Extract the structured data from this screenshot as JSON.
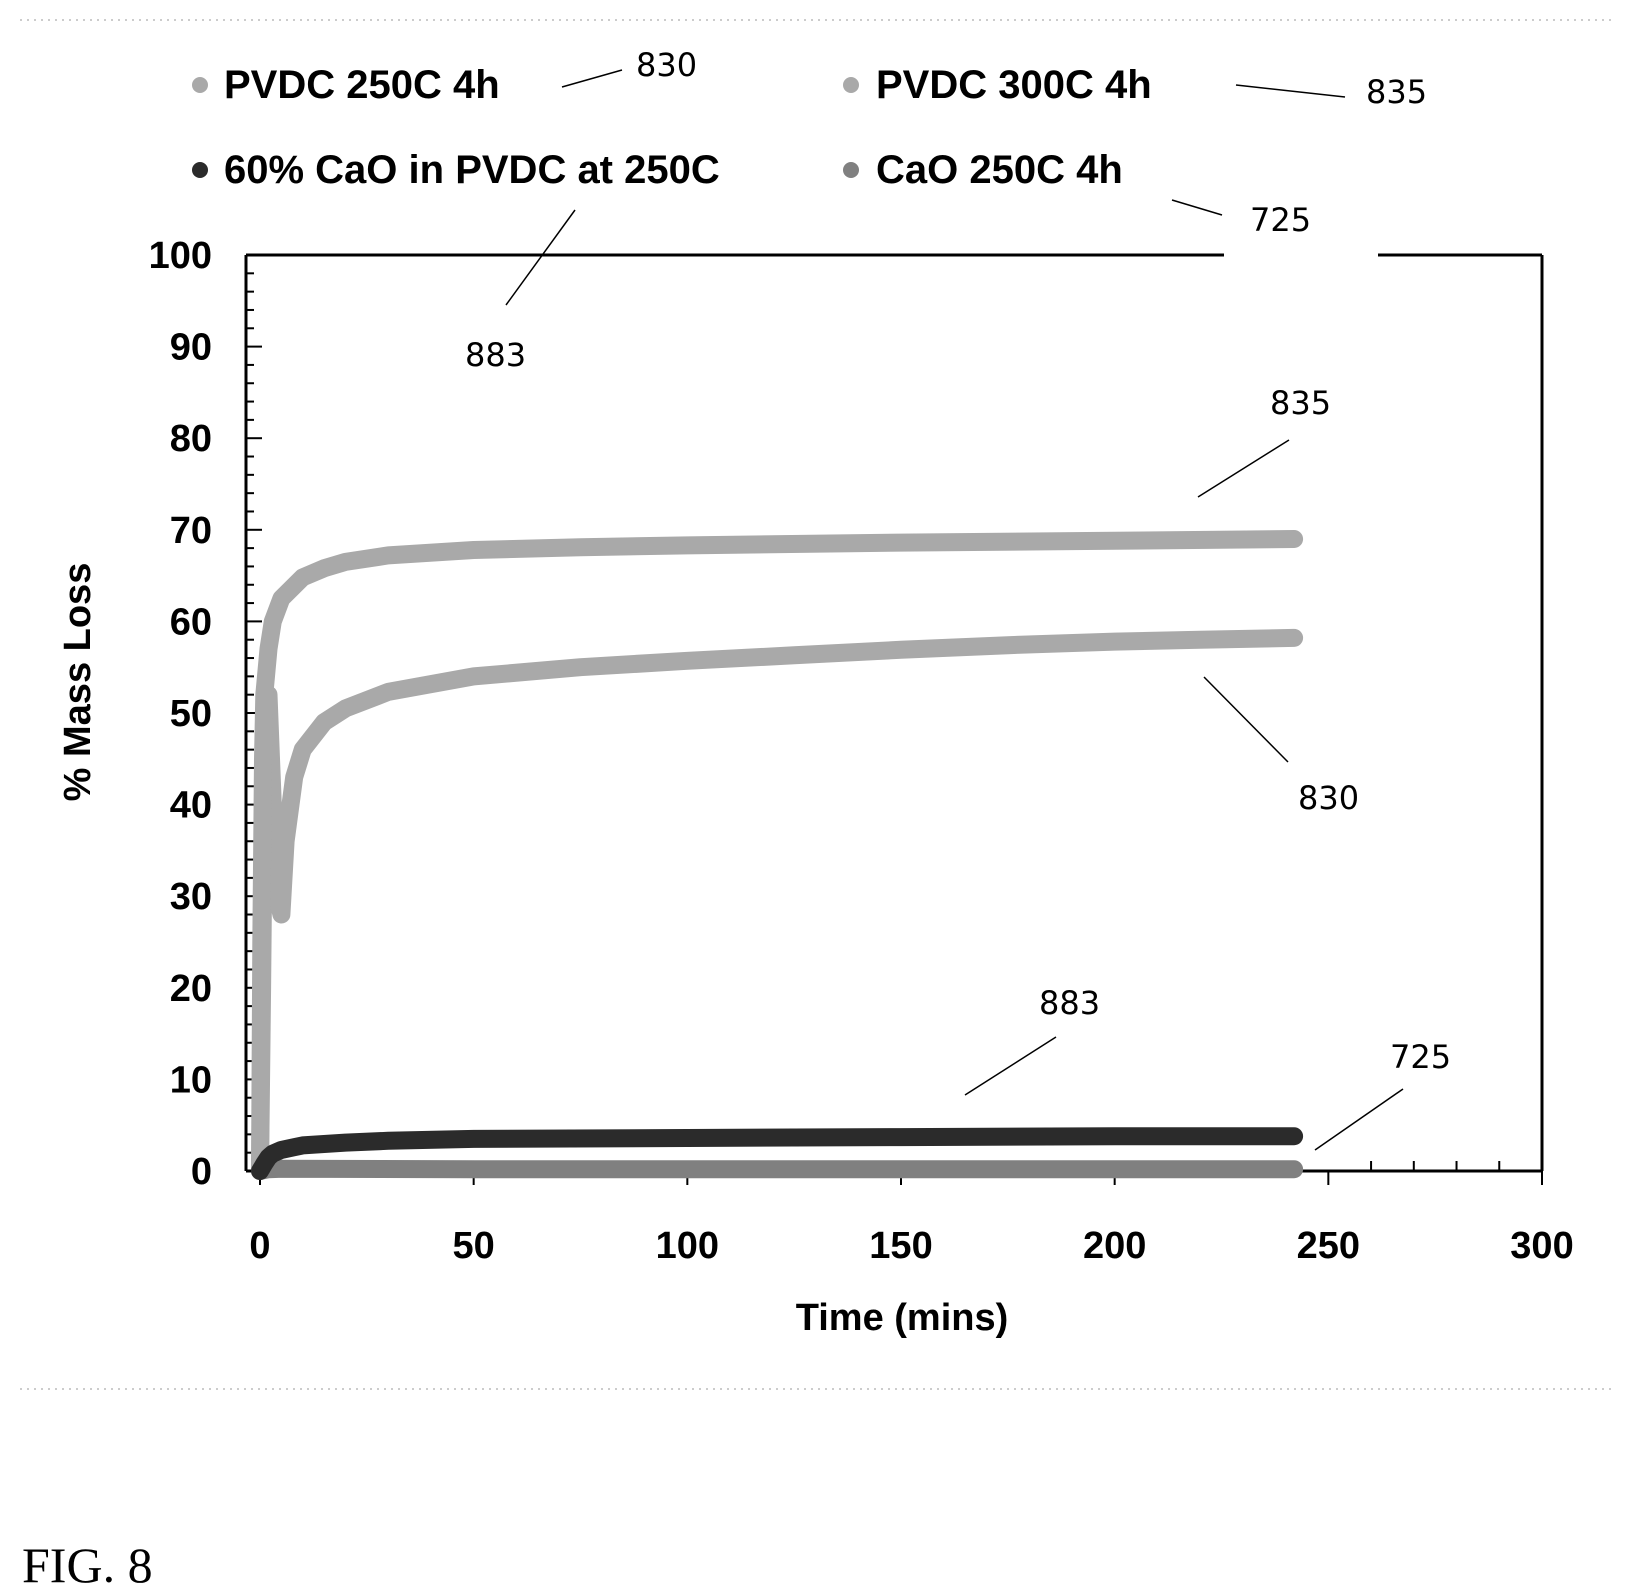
{
  "chart_data": {
    "type": "line",
    "xlabel": "Time (mins)",
    "ylabel": "% Mass Loss",
    "xlim": [
      0,
      300
    ],
    "ylim": [
      0,
      100
    ],
    "x_ticks": [
      "0",
      "50",
      "100",
      "150",
      "200",
      "250",
      "300"
    ],
    "y_ticks": [
      "0",
      "10",
      "20",
      "30",
      "40",
      "50",
      "60",
      "70",
      "80",
      "90",
      "100"
    ],
    "grid": false,
    "legend_position": "top",
    "series": [
      {
        "name": "PVDC 250C 4h",
        "ref": "830",
        "color": "#a9a9a9",
        "points": [
          [
            0,
            0
          ],
          [
            0.5,
            20
          ],
          [
            1,
            45
          ],
          [
            2,
            52
          ],
          [
            3,
            40
          ],
          [
            4,
            30
          ],
          [
            5,
            28
          ],
          [
            6,
            36
          ],
          [
            8,
            43
          ],
          [
            10,
            46
          ],
          [
            15,
            49
          ],
          [
            20,
            50.5
          ],
          [
            30,
            52.3
          ],
          [
            50,
            54
          ],
          [
            75,
            55
          ],
          [
            100,
            55.7
          ],
          [
            125,
            56.3
          ],
          [
            150,
            56.9
          ],
          [
            175,
            57.4
          ],
          [
            200,
            57.8
          ],
          [
            220,
            58
          ],
          [
            242,
            58.2
          ]
        ]
      },
      {
        "name": "PVDC 300C 4h",
        "ref": "835",
        "color": "#a9a9a9",
        "points": [
          [
            0,
            0
          ],
          [
            0.3,
            25
          ],
          [
            0.7,
            45
          ],
          [
            1,
            52
          ],
          [
            2,
            57
          ],
          [
            3,
            60
          ],
          [
            5,
            62.5
          ],
          [
            10,
            64.8
          ],
          [
            15,
            65.8
          ],
          [
            20,
            66.5
          ],
          [
            30,
            67.2
          ],
          [
            50,
            67.8
          ],
          [
            75,
            68.1
          ],
          [
            100,
            68.3
          ],
          [
            150,
            68.6
          ],
          [
            200,
            68.8
          ],
          [
            242,
            69
          ]
        ]
      },
      {
        "name": "60% CaO in PVDC at 250C",
        "ref": "883",
        "color": "#2b2b2b",
        "points": [
          [
            0,
            0
          ],
          [
            1,
            0.8
          ],
          [
            2,
            1.5
          ],
          [
            3,
            1.9
          ],
          [
            5,
            2.3
          ],
          [
            8,
            2.6
          ],
          [
            10,
            2.8
          ],
          [
            20,
            3.1
          ],
          [
            30,
            3.3
          ],
          [
            50,
            3.5
          ],
          [
            100,
            3.6
          ],
          [
            150,
            3.7
          ],
          [
            200,
            3.8
          ],
          [
            242,
            3.8
          ]
        ]
      },
      {
        "name": "CaO 250C 4h",
        "ref": "725",
        "color": "#808080",
        "points": [
          [
            0,
            0
          ],
          [
            2,
            0.2
          ],
          [
            5,
            0.25
          ],
          [
            50,
            0.2
          ],
          [
            100,
            0.2
          ],
          [
            150,
            0.2
          ],
          [
            200,
            0.2
          ],
          [
            242,
            0.2
          ]
        ]
      }
    ],
    "annotations": [
      "830",
      "835",
      "725",
      "883",
      "835",
      "830",
      "883",
      "725"
    ]
  },
  "figure_label": "FIG. 8"
}
